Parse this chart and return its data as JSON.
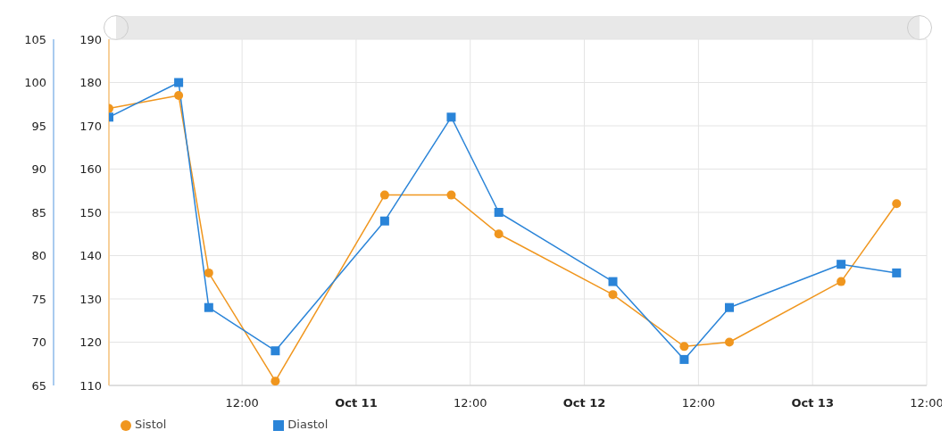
{
  "chart_data": {
    "type": "line",
    "x": [
      "--10-09T22:00",
      "--10-10T05:20",
      "--10-10T08:30",
      "--10-10T15:30",
      "--10-11T03:00",
      "--10-11T10:00",
      "--10-11T15:00",
      "--10-12T03:00",
      "--10-12T10:30",
      "--10-12T15:15",
      "--10-13T03:00",
      "--10-13T08:50"
    ],
    "series": [
      {
        "name": "Sistol",
        "color": "#f0961e",
        "marker": "circle",
        "values": [
          174,
          177,
          136,
          111,
          154,
          154,
          145,
          131,
          119,
          120,
          134,
          152
        ]
      },
      {
        "name": "Diastol",
        "color": "#2a84d8",
        "marker": "square",
        "axis": "y2",
        "values": [
          96,
          100,
          74,
          69,
          84,
          96,
          85,
          77,
          68,
          74,
          79,
          78
        ]
      }
    ],
    "xlim": [
      "--10-09T22:00",
      "--10-13T12:00"
    ],
    "xticks": [
      {
        "value": "--10-10T12:00",
        "label": "12:00"
      },
      {
        "value": "--10-11T00:00",
        "label": "Oct 11"
      },
      {
        "value": "--10-11T12:00",
        "label": "12:00"
      },
      {
        "value": "--10-12T00:00",
        "label": "Oct 12"
      },
      {
        "value": "--10-12T12:00",
        "label": "12:00"
      },
      {
        "value": "--10-13T00:00",
        "label": "Oct 13"
      },
      {
        "value": "--10-13T12:00",
        "label": "12:00"
      }
    ],
    "ylim": [
      110,
      190
    ],
    "yticks": [
      110,
      120,
      130,
      140,
      150,
      160,
      170,
      180,
      190
    ],
    "y2lim": [
      65,
      105
    ],
    "y2ticks": [
      65,
      70,
      75,
      80,
      85,
      90,
      95,
      100,
      105
    ],
    "grid": true,
    "legend": "bottom left"
  }
}
